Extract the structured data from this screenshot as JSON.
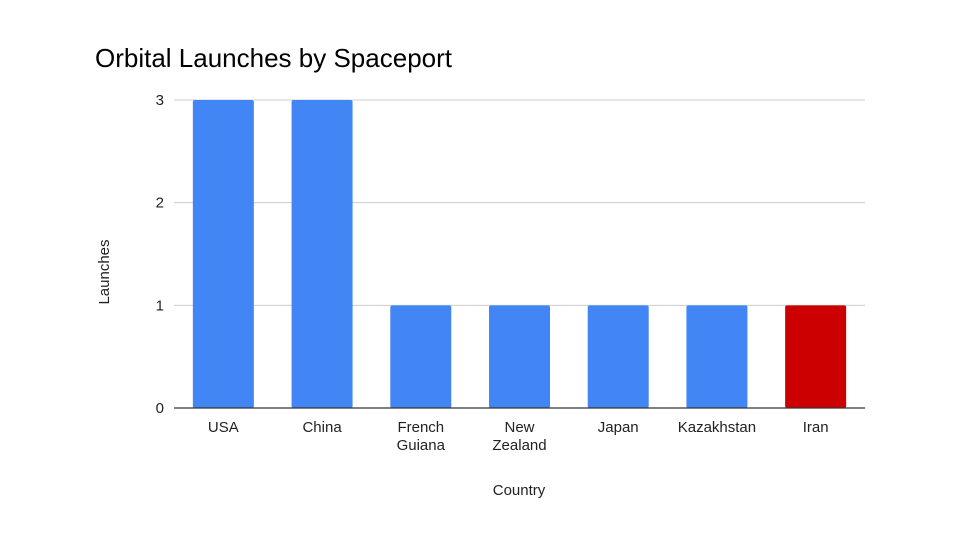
{
  "chart_data": {
    "type": "bar",
    "title": "Orbital Launches by Spaceport",
    "xlabel": "Country",
    "ylabel": "Launches",
    "categories": [
      [
        "USA"
      ],
      [
        "China"
      ],
      [
        "French",
        "Guiana"
      ],
      [
        "New",
        "Zealand"
      ],
      [
        "Japan"
      ],
      [
        "Kazakhstan"
      ],
      [
        "Iran"
      ]
    ],
    "values": [
      3,
      3,
      1,
      1,
      1,
      1,
      1
    ],
    "bar_colors": [
      "#4285f4",
      "#4285f4",
      "#4285f4",
      "#4285f4",
      "#4285f4",
      "#4285f4",
      "#cc0000"
    ],
    "ylim": [
      0,
      3
    ],
    "yticks": [
      "0",
      "1",
      "2",
      "3"
    ],
    "grid": true,
    "legend": "none"
  }
}
